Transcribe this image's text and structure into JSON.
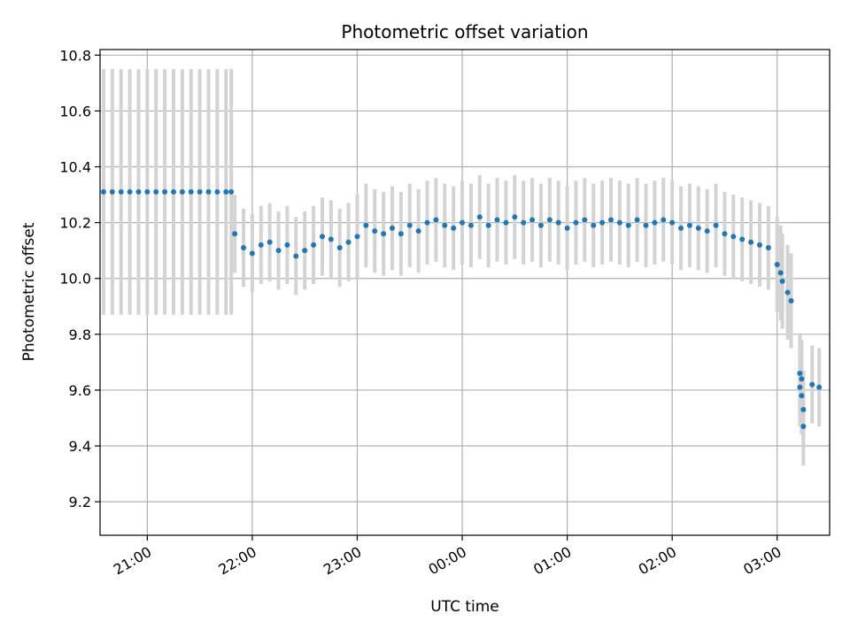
{
  "chart_data": {
    "type": "scatter",
    "title": "Photometric offset variation",
    "xlabel": "UTC time",
    "ylabel": "Photometric offset",
    "x_unit": "UTC",
    "xlim": [
      "20:33",
      "03:30"
    ],
    "ylim": [
      9.08,
      10.82
    ],
    "x_ticks": [
      "21:00",
      "22:00",
      "23:00",
      "00:00",
      "01:00",
      "02:00",
      "03:00"
    ],
    "y_ticks": [
      "9.2",
      "9.4",
      "9.6",
      "9.8",
      "10.0",
      "10.2",
      "10.4",
      "10.6",
      "10.8"
    ],
    "grid": true,
    "colors": {
      "points": "#1f77b4",
      "errorbars": "#d3d3d3",
      "grid": "#b0b0b0"
    },
    "series": [
      {
        "marker": "point",
        "error_bars": true,
        "points": [
          [
            "20:35",
            10.31,
            0.44
          ],
          [
            "20:40",
            10.31,
            0.44
          ],
          [
            "20:45",
            10.31,
            0.44
          ],
          [
            "20:50",
            10.31,
            0.44
          ],
          [
            "20:55",
            10.31,
            0.44
          ],
          [
            "21:00",
            10.31,
            0.44
          ],
          [
            "21:05",
            10.31,
            0.44
          ],
          [
            "21:10",
            10.31,
            0.44
          ],
          [
            "21:15",
            10.31,
            0.44
          ],
          [
            "21:20",
            10.31,
            0.44
          ],
          [
            "21:25",
            10.31,
            0.44
          ],
          [
            "21:30",
            10.31,
            0.44
          ],
          [
            "21:35",
            10.31,
            0.44
          ],
          [
            "21:40",
            10.31,
            0.44
          ],
          [
            "21:45",
            10.31,
            0.44
          ],
          [
            "21:48",
            10.31,
            0.44
          ],
          [
            "21:50",
            10.16,
            0.14
          ],
          [
            "21:55",
            10.11,
            0.14
          ],
          [
            "22:00",
            10.09,
            0.14
          ],
          [
            "22:05",
            10.12,
            0.14
          ],
          [
            "22:10",
            10.13,
            0.14
          ],
          [
            "22:15",
            10.1,
            0.14
          ],
          [
            "22:20",
            10.12,
            0.14
          ],
          [
            "22:25",
            10.08,
            0.14
          ],
          [
            "22:30",
            10.1,
            0.14
          ],
          [
            "22:35",
            10.12,
            0.14
          ],
          [
            "22:40",
            10.15,
            0.14
          ],
          [
            "22:45",
            10.14,
            0.14
          ],
          [
            "22:50",
            10.11,
            0.14
          ],
          [
            "22:55",
            10.13,
            0.14
          ],
          [
            "23:00",
            10.15,
            0.15
          ],
          [
            "23:05",
            10.19,
            0.15
          ],
          [
            "23:10",
            10.17,
            0.15
          ],
          [
            "23:15",
            10.16,
            0.15
          ],
          [
            "23:20",
            10.18,
            0.15
          ],
          [
            "23:25",
            10.16,
            0.15
          ],
          [
            "23:30",
            10.19,
            0.15
          ],
          [
            "23:35",
            10.17,
            0.15
          ],
          [
            "23:40",
            10.2,
            0.15
          ],
          [
            "23:45",
            10.21,
            0.15
          ],
          [
            "23:50",
            10.19,
            0.15
          ],
          [
            "23:55",
            10.18,
            0.15
          ],
          [
            "00:00",
            10.2,
            0.15
          ],
          [
            "00:05",
            10.19,
            0.15
          ],
          [
            "00:10",
            10.22,
            0.15
          ],
          [
            "00:15",
            10.19,
            0.15
          ],
          [
            "00:20",
            10.21,
            0.15
          ],
          [
            "00:25",
            10.2,
            0.15
          ],
          [
            "00:30",
            10.22,
            0.15
          ],
          [
            "00:35",
            10.2,
            0.15
          ],
          [
            "00:40",
            10.21,
            0.15
          ],
          [
            "00:45",
            10.19,
            0.15
          ],
          [
            "00:50",
            10.21,
            0.15
          ],
          [
            "00:55",
            10.2,
            0.15
          ],
          [
            "01:00",
            10.18,
            0.15
          ],
          [
            "01:05",
            10.2,
            0.15
          ],
          [
            "01:10",
            10.21,
            0.15
          ],
          [
            "01:15",
            10.19,
            0.15
          ],
          [
            "01:20",
            10.2,
            0.15
          ],
          [
            "01:25",
            10.21,
            0.15
          ],
          [
            "01:30",
            10.2,
            0.15
          ],
          [
            "01:35",
            10.19,
            0.15
          ],
          [
            "01:40",
            10.21,
            0.15
          ],
          [
            "01:45",
            10.19,
            0.15
          ],
          [
            "01:50",
            10.2,
            0.15
          ],
          [
            "01:55",
            10.21,
            0.15
          ],
          [
            "02:00",
            10.2,
            0.15
          ],
          [
            "02:05",
            10.18,
            0.15
          ],
          [
            "02:10",
            10.19,
            0.15
          ],
          [
            "02:15",
            10.18,
            0.15
          ],
          [
            "02:20",
            10.17,
            0.15
          ],
          [
            "02:25",
            10.19,
            0.15
          ],
          [
            "02:30",
            10.16,
            0.15
          ],
          [
            "02:35",
            10.15,
            0.15
          ],
          [
            "02:40",
            10.14,
            0.15
          ],
          [
            "02:45",
            10.13,
            0.15
          ],
          [
            "02:50",
            10.12,
            0.15
          ],
          [
            "02:55",
            10.11,
            0.15
          ],
          [
            "03:00",
            10.05,
            0.17
          ],
          [
            "03:02",
            10.02,
            0.17
          ],
          [
            "03:03",
            9.99,
            0.17
          ],
          [
            "03:06",
            9.95,
            0.17
          ],
          [
            "03:08",
            9.92,
            0.17
          ],
          [
            "03:13",
            9.66,
            0.14
          ],
          [
            "03:13",
            9.61,
            0.14
          ],
          [
            "03:14",
            9.58,
            0.14
          ],
          [
            "03:14",
            9.64,
            0.14
          ],
          [
            "03:15",
            9.53,
            0.14
          ],
          [
            "03:15",
            9.47,
            0.14
          ],
          [
            "03:20",
            9.62,
            0.14
          ],
          [
            "03:24",
            9.61,
            0.14
          ]
        ]
      }
    ]
  }
}
